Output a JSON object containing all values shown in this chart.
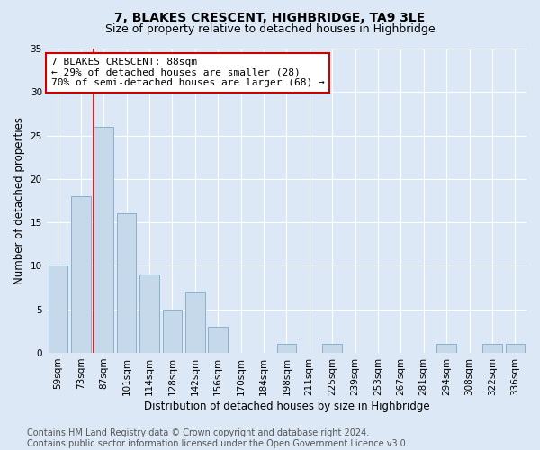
{
  "title": "7, BLAKES CRESCENT, HIGHBRIDGE, TA9 3LE",
  "subtitle": "Size of property relative to detached houses in Highbridge",
  "xlabel": "Distribution of detached houses by size in Highbridge",
  "ylabel": "Number of detached properties",
  "categories": [
    "59sqm",
    "73sqm",
    "87sqm",
    "101sqm",
    "114sqm",
    "128sqm",
    "142sqm",
    "156sqm",
    "170sqm",
    "184sqm",
    "198sqm",
    "211sqm",
    "225sqm",
    "239sqm",
    "253sqm",
    "267sqm",
    "281sqm",
    "294sqm",
    "308sqm",
    "322sqm",
    "336sqm"
  ],
  "values": [
    10,
    18,
    26,
    16,
    9,
    5,
    7,
    3,
    0,
    0,
    1,
    0,
    1,
    0,
    0,
    0,
    0,
    1,
    0,
    1,
    1
  ],
  "bar_color": "#c5d9eb",
  "bar_edge_color": "#8ab0cc",
  "vline_index": 2,
  "vline_color": "#cc0000",
  "annotation_line1": "7 BLAKES CRESCENT: 88sqm",
  "annotation_line2": "← 29% of detached houses are smaller (28)",
  "annotation_line3": "70% of semi-detached houses are larger (68) →",
  "annotation_box_color": "#ffffff",
  "annotation_box_edge": "#cc0000",
  "ylim": [
    0,
    35
  ],
  "yticks": [
    0,
    5,
    10,
    15,
    20,
    25,
    30,
    35
  ],
  "footer_text": "Contains HM Land Registry data © Crown copyright and database right 2024.\nContains public sector information licensed under the Open Government Licence v3.0.",
  "bg_color": "#dce8f5",
  "plot_bg_color": "#dce8f5",
  "title_fontsize": 10,
  "subtitle_fontsize": 9,
  "xlabel_fontsize": 8.5,
  "ylabel_fontsize": 8.5,
  "tick_fontsize": 7.5,
  "annotation_fontsize": 8,
  "footer_fontsize": 7
}
